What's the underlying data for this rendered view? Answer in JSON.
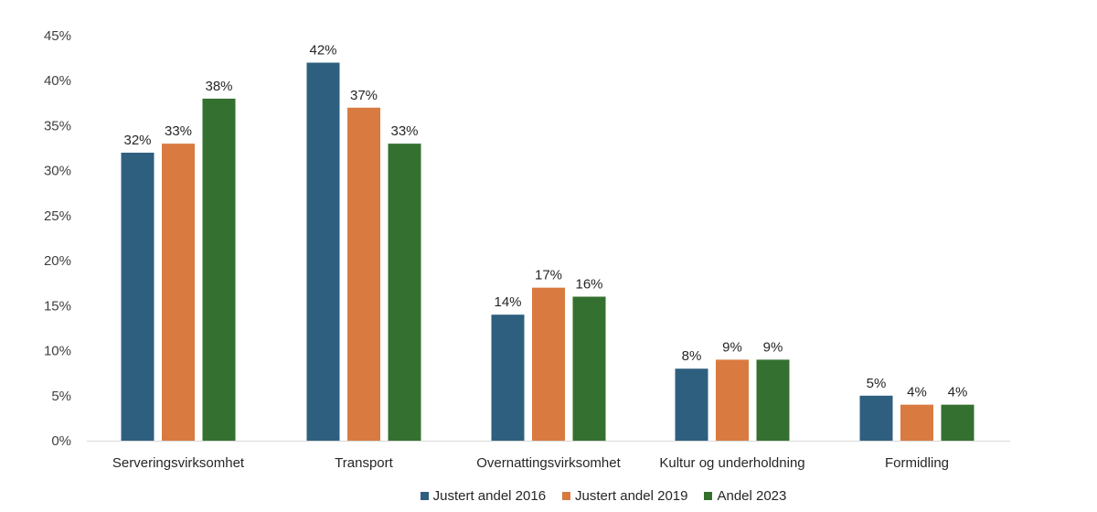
{
  "chart_data": {
    "type": "bar",
    "categories": [
      "Serveringsvirksomhet",
      "Transport",
      "Overnattingsvirksomhet",
      "Kultur og underholdning",
      "Formidling"
    ],
    "series": [
      {
        "name": "Justert andel 2016",
        "color": "#2e5f7f",
        "values": [
          32,
          42,
          14,
          8,
          5
        ]
      },
      {
        "name": "Justert andel 2019",
        "color": "#d97a41",
        "values": [
          33,
          37,
          17,
          9,
          4
        ]
      },
      {
        "name": "Andel 2023",
        "color": "#34702f",
        "values": [
          38,
          33,
          16,
          9,
          4
        ]
      }
    ],
    "ylim": [
      0,
      45
    ],
    "yticks": [
      0,
      5,
      10,
      15,
      20,
      25,
      30,
      35,
      40,
      45
    ],
    "value_suffix": "%",
    "grid": false,
    "legend_position": "bottom"
  }
}
